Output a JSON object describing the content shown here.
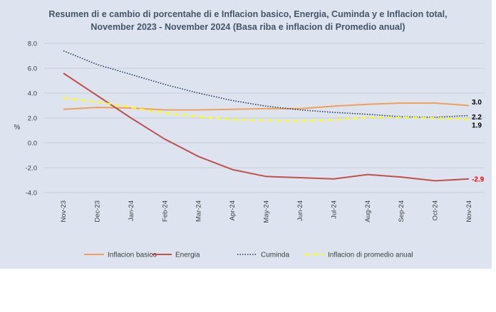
{
  "chart_data": {
    "type": "line",
    "title": "Resumen di e cambio di porcentahe di e Inflacion basico, Energia, Cuminda y e Inflacion total,",
    "subtitle": "November 2023 - November 2024 (Basa riba e inflacion di Promedio anual)",
    "ylabel": "%",
    "ylim": [
      -4.0,
      8.0
    ],
    "yticks": [
      "8.0",
      "6.0",
      "4.0",
      "2.0",
      "0.0",
      "-2.0",
      "-4.0"
    ],
    "ytick_values": [
      8,
      6,
      4,
      2,
      0,
      -2,
      -4
    ],
    "categories": [
      "Nov-23",
      "Dec-23",
      "Jan-24",
      "Feb-24",
      "Mar-24",
      "Apr-24",
      "May-24",
      "Jun-24",
      "Jul-24",
      "Aug-24",
      "Sep-24",
      "Oct-24",
      "Nov-24"
    ],
    "grid": true,
    "legend_position": "bottom",
    "series": [
      {
        "name": "Inflacion basico",
        "color": "#f0a05a",
        "style": "solid",
        "values": [
          2.7,
          2.85,
          2.8,
          2.65,
          2.65,
          2.7,
          2.75,
          2.75,
          2.95,
          3.1,
          3.2,
          3.2,
          3.0
        ],
        "end_label": "3.0",
        "end_label_color": "#000000"
      },
      {
        "name": "Energia",
        "color": "#c0504d",
        "style": "solid",
        "values": [
          5.6,
          3.8,
          2.0,
          0.3,
          -1.1,
          -2.15,
          -2.7,
          -2.8,
          -2.9,
          -2.55,
          -2.75,
          -3.05,
          -2.9
        ],
        "end_label": "-2.9",
        "end_label_color": "#ff0000"
      },
      {
        "name": "Cuminda",
        "color": "#1f3864",
        "style": "dotted",
        "values": [
          7.4,
          6.3,
          5.5,
          4.7,
          4.0,
          3.4,
          2.95,
          2.65,
          2.45,
          2.3,
          2.1,
          2.05,
          2.2
        ],
        "end_label": "2.2",
        "end_label_color": "#000000"
      },
      {
        "name": "Inflacion di promedio anual",
        "color": "#ffff00",
        "style": "dashed",
        "values": [
          3.6,
          3.3,
          2.85,
          2.4,
          2.1,
          1.9,
          1.8,
          1.75,
          1.85,
          2.05,
          2.05,
          2.0,
          1.9
        ],
        "end_label": "1.9",
        "end_label_color": "#000000"
      }
    ]
  }
}
